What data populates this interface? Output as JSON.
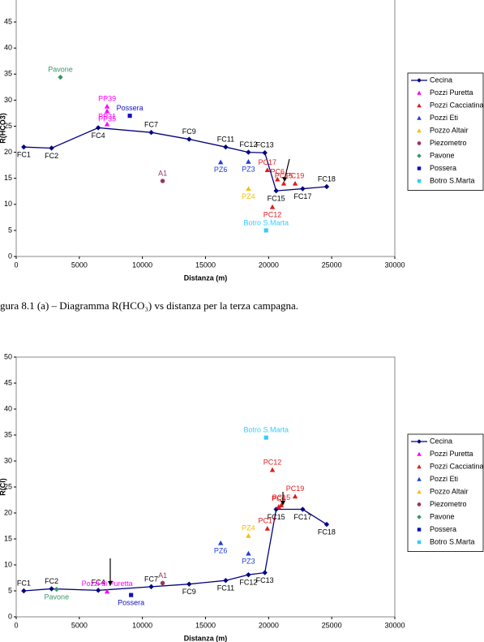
{
  "caption": "gura 8.1 (a) – Diagramma R(HCO₃) vs distanza per la terza campagna.",
  "chart_data": [
    {
      "type": "line",
      "y_label": "R(HCO3)",
      "x_label": "Distanza (m)",
      "xlim": [
        0,
        30000
      ],
      "xticks": [
        0,
        5000,
        10000,
        15000,
        20000,
        25000,
        30000
      ],
      "ylim": [
        0,
        50
      ],
      "yticks": [
        0,
        5,
        10,
        15,
        20,
        25,
        30,
        35,
        40,
        45
      ],
      "series": [
        {
          "name": "Cecina",
          "color": "#000080",
          "marker": "diamond",
          "line": true,
          "x": [
            600,
            2800,
            6500,
            10700,
            13700,
            16600,
            18400,
            19700,
            20600,
            22700,
            24600
          ],
          "values": [
            21,
            20.8,
            24.7,
            23.8,
            22.5,
            21,
            20,
            19.9,
            12.6,
            13,
            13.4
          ],
          "labels": [
            "FC1",
            "FC2",
            "FC4",
            "FC7",
            "FC9",
            "FC11",
            "FC12",
            "FC13",
            "FC15",
            "FC17",
            "FC18"
          ]
        },
        {
          "name": "Pozzi Puretta",
          "color": "#ff00ff",
          "marker": "triangle",
          "x": [
            7200,
            7200,
            7200
          ],
          "values": [
            28.8,
            27.9,
            25.4
          ],
          "labels": [
            "PP39",
            "PP35",
            "PP31"
          ]
        },
        {
          "name": "Pozzi Cacciatina",
          "color": "#e31a1c",
          "marker": "triangle",
          "x": [
            19900,
            20700,
            21200,
            22100,
            20300
          ],
          "values": [
            16.6,
            14.8,
            14,
            14,
            9.5
          ],
          "labels": [
            "PC17",
            "PC6",
            "PC15",
            "PC19",
            "PC12"
          ]
        },
        {
          "name": "Pozzi Eti",
          "color": "#1f3fd0",
          "marker": "triangle",
          "x": [
            16200,
            18400
          ],
          "values": [
            18.1,
            18.2
          ],
          "labels": [
            "PZ6",
            "PZ3"
          ]
        },
        {
          "name": "Pozzo Altair",
          "color": "#f5c000",
          "marker": "triangle",
          "x": [
            18400
          ],
          "values": [
            13
          ],
          "labels": [
            "PZ4"
          ]
        },
        {
          "name": "Piezometro",
          "color": "#993366",
          "marker": "circle",
          "x": [
            11600
          ],
          "values": [
            14.5
          ],
          "labels": [
            "A1"
          ]
        },
        {
          "name": "Pavone",
          "color": "#339966",
          "marker": "diamond",
          "x": [
            3500
          ],
          "values": [
            34.4
          ],
          "labels": [
            "Pavone"
          ]
        },
        {
          "name": "Possera",
          "color": "#1010c0",
          "marker": "square",
          "x": [
            9000
          ],
          "values": [
            27
          ],
          "labels": [
            "Possera"
          ]
        },
        {
          "name": "Botro S.Marta",
          "color": "#33ccff",
          "marker": "square",
          "x": [
            19800
          ],
          "values": [
            5
          ],
          "labels": [
            "Botro S.Marta"
          ]
        }
      ]
    },
    {
      "type": "line",
      "y_label": "R(Cl)",
      "x_label": "Distanza (m)",
      "xlim": [
        0,
        30000
      ],
      "xticks": [
        0,
        5000,
        10000,
        15000,
        20000,
        25000,
        30000
      ],
      "ylim": [
        0,
        50
      ],
      "yticks": [
        0,
        5,
        10,
        15,
        20,
        25,
        30,
        35,
        40,
        45,
        50
      ],
      "series": [
        {
          "name": "Cecina",
          "color": "#000080",
          "marker": "diamond",
          "line": true,
          "x": [
            600,
            2800,
            6500,
            10700,
            13700,
            16600,
            18400,
            19700,
            20600,
            22700,
            24600
          ],
          "values": [
            5,
            5.4,
            5.1,
            5.8,
            6.3,
            7,
            8.1,
            8.5,
            20.7,
            20.7,
            17.8
          ],
          "labels": [
            "FC1",
            "FC2",
            "FC4",
            "FC7",
            "FC9",
            "FC11",
            "FC12",
            "FC13",
            "FC15",
            "FC17",
            "FC18"
          ]
        },
        {
          "name": "Pozzi Puretta",
          "color": "#ff00ff",
          "marker": "triangle",
          "x": [
            7200
          ],
          "values": [
            4.9
          ],
          "labels": [
            "Pozzi di Puretta"
          ]
        },
        {
          "name": "Pozzi Cacciatina",
          "color": "#e31a1c",
          "marker": "triangle",
          "x": [
            20300,
            21000,
            22100,
            20800,
            19900
          ],
          "values": [
            28.3,
            21.5,
            23.2,
            21.2,
            17
          ],
          "labels": [
            "PC12",
            "PC15",
            "PC19",
            "PC6",
            "PC17"
          ]
        },
        {
          "name": "Pozzi Eti",
          "color": "#1f3fd0",
          "marker": "triangle",
          "x": [
            16200,
            18400
          ],
          "values": [
            14.2,
            12.2
          ],
          "labels": [
            "PZ6",
            "PZ3"
          ]
        },
        {
          "name": "Pozzo Altair",
          "color": "#f5c000",
          "marker": "triangle",
          "x": [
            18400
          ],
          "values": [
            15.6
          ],
          "labels": [
            "PZ4"
          ]
        },
        {
          "name": "Piezometro",
          "color": "#993366",
          "marker": "circle",
          "x": [
            11600
          ],
          "values": [
            6.5
          ],
          "labels": [
            "A1"
          ]
        },
        {
          "name": "Pavone",
          "color": "#339966",
          "marker": "diamond",
          "x": [
            3200
          ],
          "values": [
            5.3
          ],
          "labels": [
            "Pavone"
          ]
        },
        {
          "name": "Possera",
          "color": "#1010c0",
          "marker": "square",
          "x": [
            9100
          ],
          "values": [
            4.2
          ],
          "labels": [
            "Possera"
          ]
        },
        {
          "name": "Botro S.Marta",
          "color": "#33ccff",
          "marker": "square",
          "x": [
            19800
          ],
          "values": [
            34.5
          ],
          "labels": [
            "Botro S.Marta"
          ]
        }
      ]
    }
  ]
}
